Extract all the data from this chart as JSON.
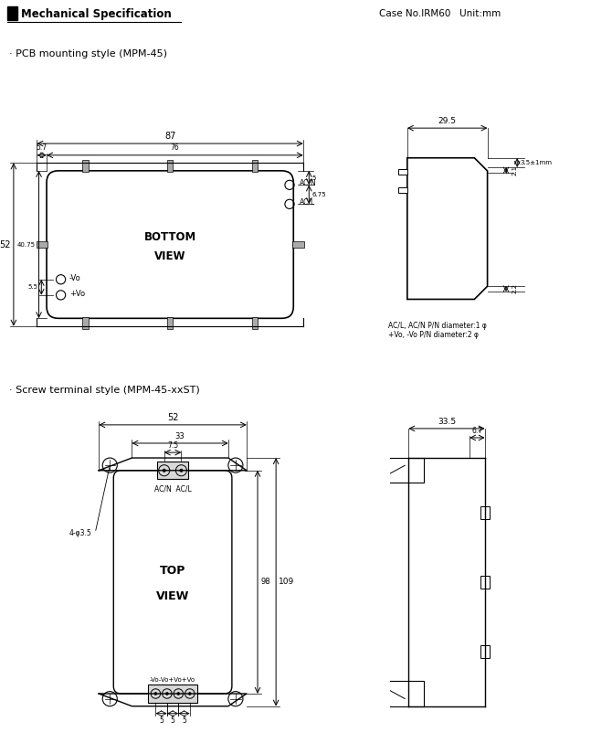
{
  "title": "Mechanical Specification",
  "case_info": "Case No.IRM60   Unit:mm",
  "pcb_label": "· PCB mounting style (MPM-45)",
  "screw_label": "· Screw terminal style (MPM-45-xxST)",
  "bg_color": "#ffffff",
  "line_color": "#000000",
  "note_text": "AC/L, AC/N P/N diameter:1 φ\n+Vo, -Vo P/N diameter:2 φ"
}
